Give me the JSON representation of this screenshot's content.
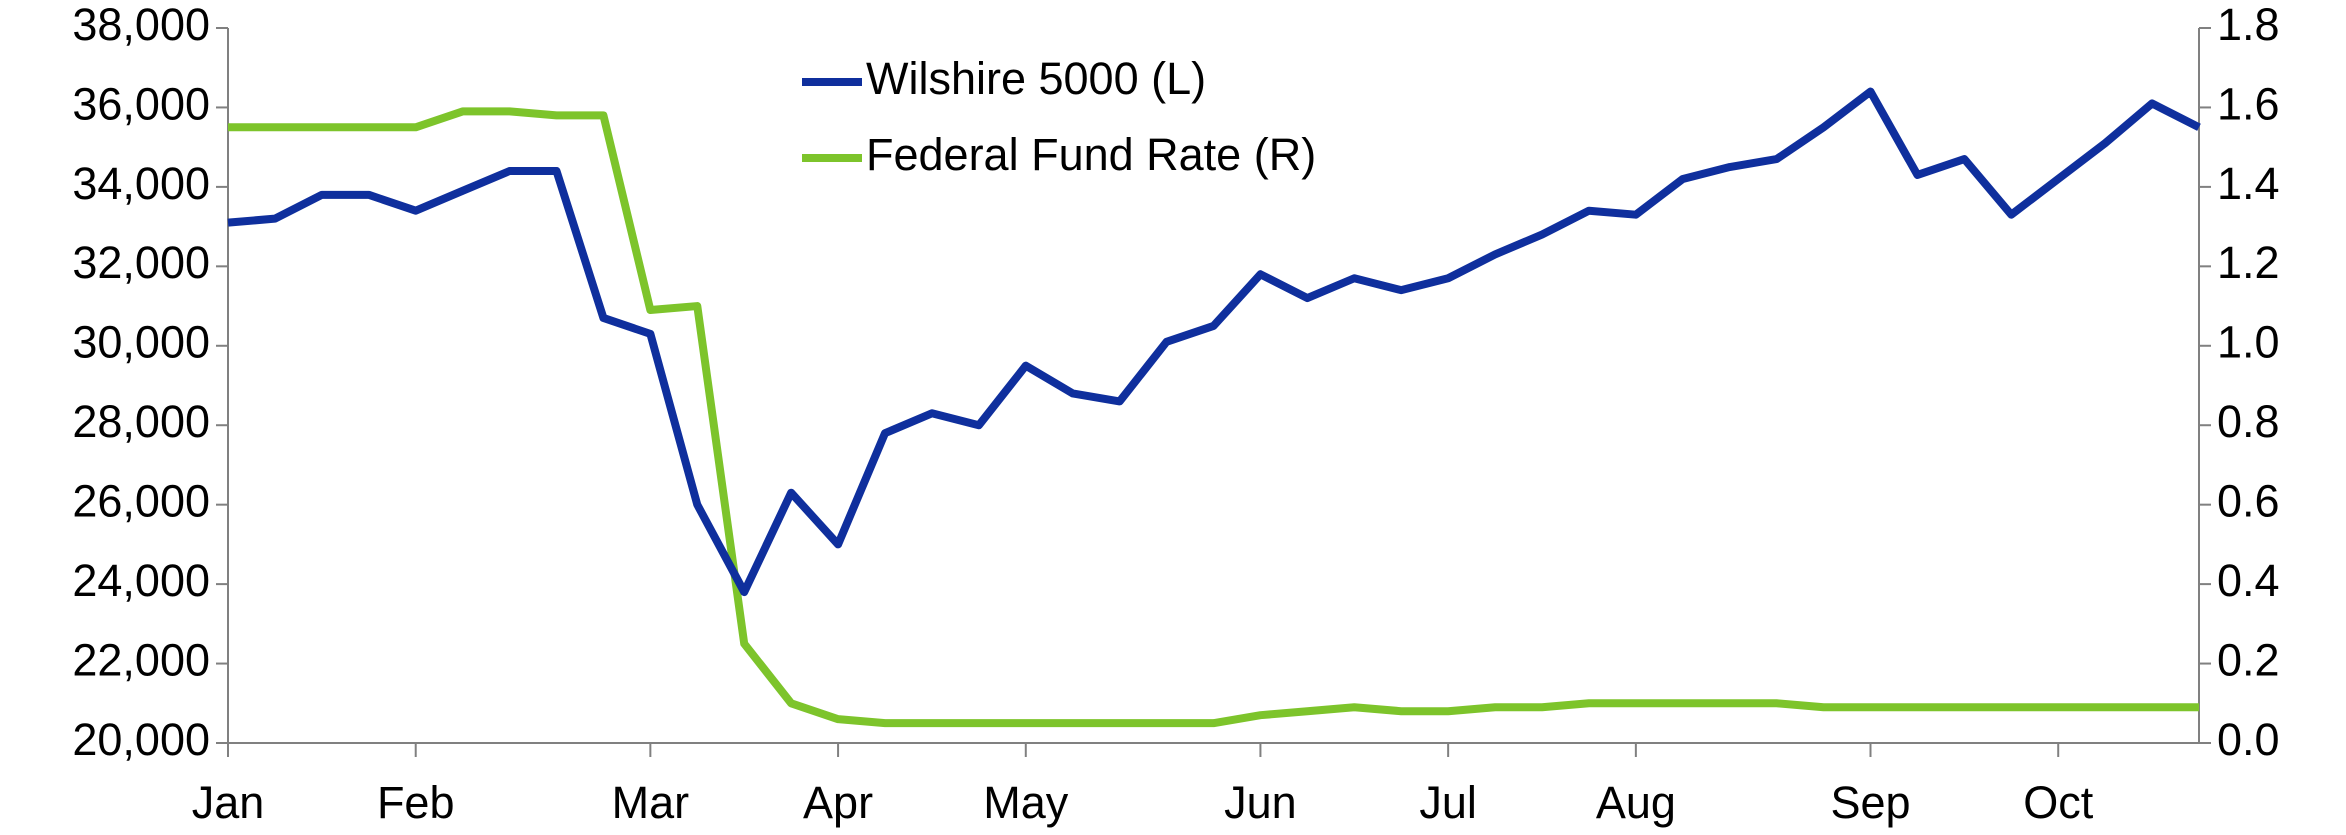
{
  "chart_data": {
    "type": "line",
    "categories": [
      "Jan",
      null,
      null,
      null,
      "Feb",
      null,
      null,
      null,
      null,
      "Mar",
      null,
      null,
      null,
      "Apr",
      null,
      null,
      null,
      "May",
      null,
      null,
      null,
      null,
      "Jun",
      null,
      null,
      null,
      "Jul",
      null,
      null,
      null,
      "Aug",
      null,
      null,
      null,
      null,
      "Sep",
      null,
      null,
      null,
      "Oct",
      null,
      null,
      null
    ],
    "series": [
      {
        "name": "Wilshire 5000 (L)",
        "color": "#0f2f9d",
        "axis": "y",
        "values": [
          33100,
          33200,
          33800,
          33800,
          33400,
          33900,
          34400,
          34400,
          30700,
          30300,
          26000,
          23800,
          26300,
          25000,
          27800,
          28300,
          28000,
          29500,
          28800,
          28600,
          30100,
          30500,
          31800,
          31200,
          31700,
          31400,
          31700,
          32300,
          32800,
          33400,
          33300,
          34200,
          34500,
          34700,
          35500,
          36400,
          34300,
          34700,
          33300,
          34200,
          35100,
          36100,
          35500
        ]
      },
      {
        "name": "Federal Fund Rate (R)",
        "color": "#7dc42b",
        "axis": "y2",
        "values": [
          1.55,
          1.55,
          1.55,
          1.55,
          1.55,
          1.59,
          1.59,
          1.58,
          1.58,
          1.09,
          1.1,
          0.25,
          0.1,
          0.06,
          0.05,
          0.05,
          0.05,
          0.05,
          0.05,
          0.05,
          0.05,
          0.05,
          0.07,
          0.08,
          0.09,
          0.08,
          0.08,
          0.09,
          0.09,
          0.1,
          0.1,
          0.1,
          0.1,
          0.1,
          0.09,
          0.09,
          0.09,
          0.09,
          0.09,
          0.09,
          0.09,
          0.09,
          0.09
        ]
      }
    ],
    "ylim": [
      20000,
      38000
    ],
    "yticks": [
      {
        "value": 20000,
        "label": "20,000"
      },
      {
        "value": 22000,
        "label": "22,000"
      },
      {
        "value": 24000,
        "label": "24,000"
      },
      {
        "value": 26000,
        "label": "26,000"
      },
      {
        "value": 28000,
        "label": "28,000"
      },
      {
        "value": 30000,
        "label": "30,000"
      },
      {
        "value": 32000,
        "label": "32,000"
      },
      {
        "value": 34000,
        "label": "34,000"
      },
      {
        "value": 36000,
        "label": "36,000"
      },
      {
        "value": 38000,
        "label": "38,000"
      }
    ],
    "y2lim": [
      0,
      1.8
    ],
    "y2ticks": [
      {
        "value": 0,
        "label": "0.0"
      },
      0.2,
      0.4,
      0.6,
      0.8,
      {
        "value": 1,
        "label": "1.0"
      },
      1.2,
      1.4,
      1.6,
      1.8
    ],
    "legend": "top"
  }
}
